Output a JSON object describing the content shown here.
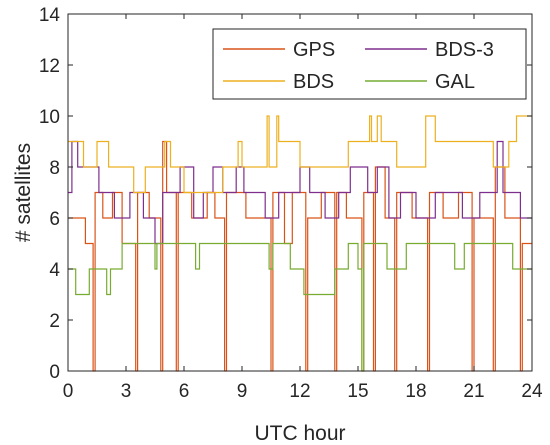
{
  "chart_data": {
    "type": "line",
    "xlabel": "UTC hour",
    "ylabel": "# satellites",
    "xlim": [
      0,
      24
    ],
    "ylim": [
      0,
      14
    ],
    "xticks": [
      0,
      3,
      6,
      9,
      12,
      15,
      18,
      21,
      24
    ],
    "yticks": [
      0,
      2,
      4,
      6,
      8,
      10,
      12,
      14
    ],
    "grid": false,
    "legend_position": "top-right",
    "legend_columns": 2,
    "series": [
      {
        "name": "GPS",
        "color": "#D95319",
        "points": [
          [
            0,
            6
          ],
          [
            0.9,
            6
          ],
          [
            0.9,
            5
          ],
          [
            1.3,
            5
          ],
          [
            1.3,
            0
          ],
          [
            1.4,
            0
          ],
          [
            1.4,
            7
          ],
          [
            1.8,
            7
          ],
          [
            1.8,
            6
          ],
          [
            2.3,
            6
          ],
          [
            2.3,
            7
          ],
          [
            2.8,
            7
          ],
          [
            2.8,
            5
          ],
          [
            3.5,
            5
          ],
          [
            3.5,
            0
          ],
          [
            3.6,
            0
          ],
          [
            3.6,
            7
          ],
          [
            4.2,
            7
          ],
          [
            4.2,
            6
          ],
          [
            4.8,
            6
          ],
          [
            4.8,
            0
          ],
          [
            4.9,
            0
          ],
          [
            4.9,
            9
          ],
          [
            5.1,
            9
          ],
          [
            5.1,
            7
          ],
          [
            5.6,
            7
          ],
          [
            5.6,
            0
          ],
          [
            5.7,
            0
          ],
          [
            5.7,
            7
          ],
          [
            6.4,
            7
          ],
          [
            6.4,
            6
          ],
          [
            7.2,
            6
          ],
          [
            7.2,
            7
          ],
          [
            7.6,
            7
          ],
          [
            7.6,
            6
          ],
          [
            8.1,
            6
          ],
          [
            8.1,
            0
          ],
          [
            8.2,
            0
          ],
          [
            8.2,
            7
          ],
          [
            9.2,
            7
          ],
          [
            9.2,
            6
          ],
          [
            10.5,
            6
          ],
          [
            10.5,
            0
          ],
          [
            10.6,
            0
          ],
          [
            10.6,
            7
          ],
          [
            11.2,
            7
          ],
          [
            11.2,
            5
          ],
          [
            11.6,
            5
          ],
          [
            11.6,
            7
          ],
          [
            12.3,
            7
          ],
          [
            12.3,
            0
          ],
          [
            12.4,
            0
          ],
          [
            12.4,
            6
          ],
          [
            13.1,
            6
          ],
          [
            13.1,
            7
          ],
          [
            13.8,
            7
          ],
          [
            13.8,
            0
          ],
          [
            13.9,
            0
          ],
          [
            13.9,
            7
          ],
          [
            14.4,
            7
          ],
          [
            14.4,
            6
          ],
          [
            15.2,
            6
          ],
          [
            15.2,
            0
          ],
          [
            15.3,
            0
          ],
          [
            15.3,
            7
          ],
          [
            15.8,
            7
          ],
          [
            15.8,
            0
          ],
          [
            15.9,
            0
          ],
          [
            15.9,
            8
          ],
          [
            16.4,
            8
          ],
          [
            16.4,
            6
          ],
          [
            16.9,
            6
          ],
          [
            16.9,
            0
          ],
          [
            17.0,
            0
          ],
          [
            17.0,
            7
          ],
          [
            17.8,
            7
          ],
          [
            17.8,
            6
          ],
          [
            18.6,
            6
          ],
          [
            18.6,
            0
          ],
          [
            18.7,
            0
          ],
          [
            18.7,
            7
          ],
          [
            19.4,
            7
          ],
          [
            19.4,
            6
          ],
          [
            20.2,
            6
          ],
          [
            20.2,
            7
          ],
          [
            20.9,
            7
          ],
          [
            20.9,
            0
          ],
          [
            21.0,
            0
          ],
          [
            21.0,
            6
          ],
          [
            22.0,
            6
          ],
          [
            22.0,
            0
          ],
          [
            22.1,
            0
          ],
          [
            22.1,
            8
          ],
          [
            22.6,
            8
          ],
          [
            22.6,
            6
          ],
          [
            23.4,
            6
          ],
          [
            23.4,
            0
          ],
          [
            23.5,
            0
          ],
          [
            23.5,
            5
          ],
          [
            24,
            5
          ]
        ]
      },
      {
        "name": "BDS-3",
        "color": "#7E2F8E",
        "points": [
          [
            0,
            7
          ],
          [
            0.2,
            7
          ],
          [
            0.2,
            9
          ],
          [
            0.5,
            9
          ],
          [
            0.5,
            8
          ],
          [
            1.6,
            8
          ],
          [
            1.6,
            7
          ],
          [
            2.4,
            7
          ],
          [
            2.4,
            6
          ],
          [
            3.2,
            6
          ],
          [
            3.2,
            7
          ],
          [
            3.9,
            7
          ],
          [
            3.9,
            6
          ],
          [
            4.5,
            6
          ],
          [
            4.5,
            5
          ],
          [
            4.9,
            5
          ],
          [
            4.9,
            7
          ],
          [
            5.8,
            7
          ],
          [
            5.8,
            8
          ],
          [
            6.5,
            8
          ],
          [
            6.5,
            6
          ],
          [
            7.0,
            6
          ],
          [
            7.0,
            7
          ],
          [
            7.5,
            7
          ],
          [
            7.5,
            8
          ],
          [
            8.0,
            8
          ],
          [
            8.0,
            7
          ],
          [
            8.7,
            7
          ],
          [
            8.7,
            8
          ],
          [
            9.1,
            8
          ],
          [
            9.1,
            7
          ],
          [
            10.2,
            7
          ],
          [
            10.2,
            6
          ],
          [
            10.9,
            6
          ],
          [
            10.9,
            7
          ],
          [
            12.0,
            7
          ],
          [
            12.0,
            8
          ],
          [
            12.5,
            8
          ],
          [
            12.5,
            7
          ],
          [
            13.3,
            7
          ],
          [
            13.3,
            6
          ],
          [
            14.0,
            6
          ],
          [
            14.0,
            7
          ],
          [
            14.6,
            7
          ],
          [
            14.6,
            8
          ],
          [
            15.5,
            8
          ],
          [
            15.5,
            7
          ],
          [
            16.0,
            7
          ],
          [
            16.0,
            8
          ],
          [
            16.6,
            8
          ],
          [
            16.6,
            6
          ],
          [
            17.2,
            6
          ],
          [
            17.2,
            7
          ],
          [
            18.0,
            7
          ],
          [
            18.0,
            6
          ],
          [
            19.0,
            6
          ],
          [
            19.0,
            7
          ],
          [
            20.4,
            7
          ],
          [
            20.4,
            6
          ],
          [
            21.3,
            6
          ],
          [
            21.3,
            7
          ],
          [
            22.2,
            7
          ],
          [
            22.2,
            9
          ],
          [
            22.5,
            9
          ],
          [
            22.5,
            7
          ],
          [
            23.4,
            7
          ],
          [
            23.4,
            6
          ],
          [
            24,
            6
          ]
        ]
      },
      {
        "name": "BDS",
        "color": "#EDB120",
        "points": [
          [
            0,
            9
          ],
          [
            0.8,
            9
          ],
          [
            0.8,
            8
          ],
          [
            1.5,
            8
          ],
          [
            1.5,
            9
          ],
          [
            2.1,
            9
          ],
          [
            2.1,
            8
          ],
          [
            3.4,
            8
          ],
          [
            3.4,
            7
          ],
          [
            4.0,
            7
          ],
          [
            4.0,
            8
          ],
          [
            5.0,
            8
          ],
          [
            5.0,
            9
          ],
          [
            5.3,
            9
          ],
          [
            5.3,
            8
          ],
          [
            6.0,
            8
          ],
          [
            6.0,
            7
          ],
          [
            8.0,
            7
          ],
          [
            8.0,
            8
          ],
          [
            8.8,
            8
          ],
          [
            8.8,
            9
          ],
          [
            9.0,
            9
          ],
          [
            9.0,
            8
          ],
          [
            10.3,
            8
          ],
          [
            10.3,
            10
          ],
          [
            10.4,
            10
          ],
          [
            10.4,
            8
          ],
          [
            10.8,
            8
          ],
          [
            10.8,
            10
          ],
          [
            10.9,
            10
          ],
          [
            10.9,
            9
          ],
          [
            12.0,
            9
          ],
          [
            12.0,
            8
          ],
          [
            14.5,
            8
          ],
          [
            14.5,
            9
          ],
          [
            15.6,
            9
          ],
          [
            15.6,
            10
          ],
          [
            15.7,
            10
          ],
          [
            15.7,
            9
          ],
          [
            16.0,
            9
          ],
          [
            16.0,
            10
          ],
          [
            16.2,
            10
          ],
          [
            16.2,
            9
          ],
          [
            17.0,
            9
          ],
          [
            17.0,
            8
          ],
          [
            18.5,
            8
          ],
          [
            18.5,
            10
          ],
          [
            19.0,
            10
          ],
          [
            19.0,
            9
          ],
          [
            22.0,
            9
          ],
          [
            22.0,
            8
          ],
          [
            22.8,
            8
          ],
          [
            22.8,
            9
          ],
          [
            23.2,
            9
          ],
          [
            23.2,
            10
          ],
          [
            24,
            10
          ]
        ]
      },
      {
        "name": "GAL",
        "color": "#77AC30",
        "points": [
          [
            0,
            4
          ],
          [
            0.4,
            4
          ],
          [
            0.4,
            3
          ],
          [
            1.1,
            3
          ],
          [
            1.1,
            4
          ],
          [
            2.0,
            4
          ],
          [
            2.0,
            3
          ],
          [
            2.2,
            3
          ],
          [
            2.2,
            4
          ],
          [
            2.8,
            4
          ],
          [
            2.8,
            5
          ],
          [
            4.5,
            5
          ],
          [
            4.5,
            4
          ],
          [
            4.6,
            4
          ],
          [
            4.6,
            5
          ],
          [
            6.6,
            5
          ],
          [
            6.6,
            4
          ],
          [
            6.8,
            4
          ],
          [
            6.8,
            5
          ],
          [
            10.4,
            5
          ],
          [
            10.4,
            4
          ],
          [
            10.6,
            4
          ],
          [
            10.6,
            5
          ],
          [
            11.5,
            5
          ],
          [
            11.5,
            4
          ],
          [
            12.2,
            4
          ],
          [
            12.2,
            3
          ],
          [
            13.8,
            3
          ],
          [
            13.8,
            4
          ],
          [
            14.5,
            4
          ],
          [
            14.5,
            5
          ],
          [
            15.0,
            5
          ],
          [
            15.0,
            4
          ],
          [
            15.2,
            4
          ],
          [
            15.2,
            0
          ],
          [
            15.3,
            0
          ],
          [
            15.3,
            5
          ],
          [
            16.5,
            5
          ],
          [
            16.5,
            4
          ],
          [
            17.5,
            4
          ],
          [
            17.5,
            5
          ],
          [
            20.0,
            5
          ],
          [
            20.0,
            4
          ],
          [
            20.5,
            4
          ],
          [
            20.5,
            5
          ],
          [
            23.0,
            5
          ],
          [
            23.0,
            4
          ],
          [
            24,
            4
          ]
        ]
      }
    ]
  }
}
